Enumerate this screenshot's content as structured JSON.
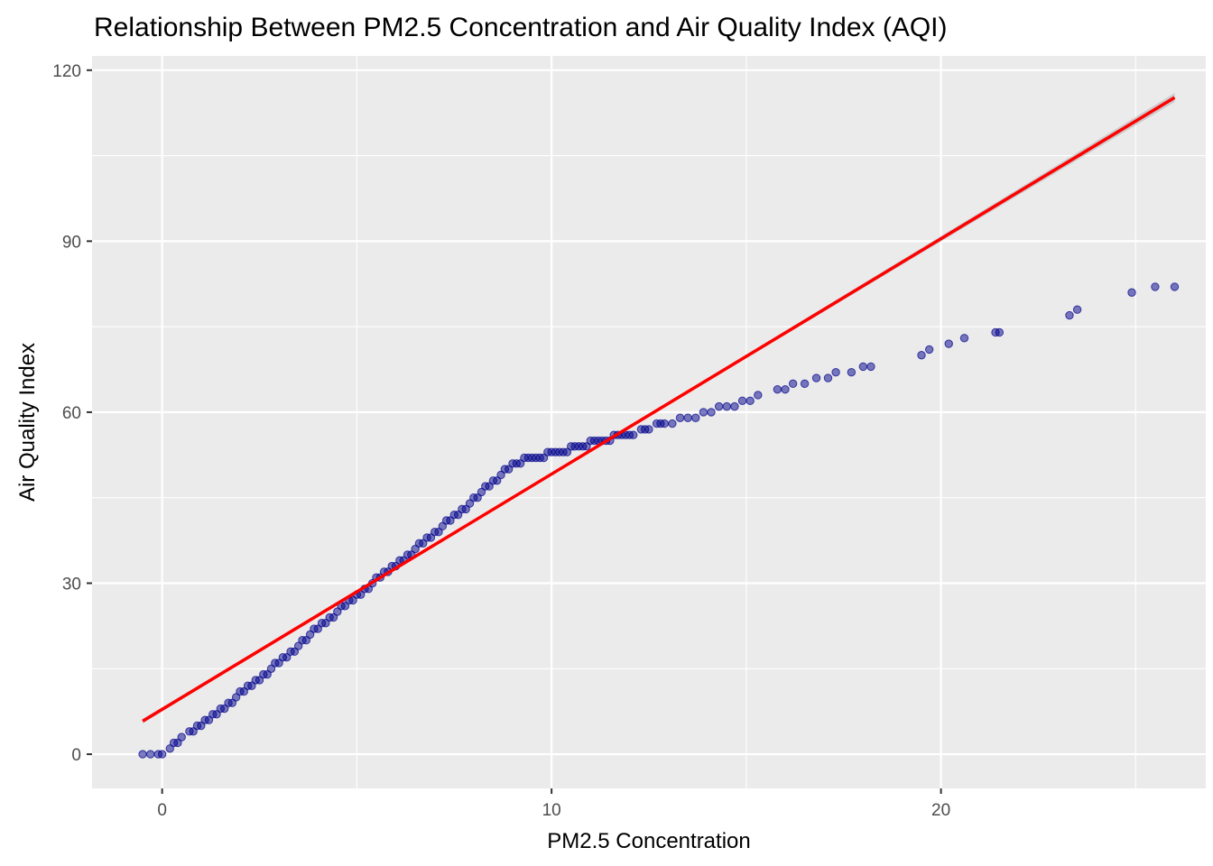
{
  "chart_data": {
    "type": "scatter",
    "title": "Relationship Between PM2.5 Concentration and Air Quality Index (AQI)",
    "xlabel": "PM2.5 Concentration",
    "ylabel": "Air Quality Index",
    "xlim": [
      -1.8,
      26.8
    ],
    "ylim": [
      -6,
      122.5
    ],
    "x_ticks": [
      0,
      10,
      20
    ],
    "y_ticks": [
      0,
      30,
      60,
      90,
      120
    ],
    "grid": true,
    "background": "#ebebeb",
    "series": [
      {
        "kind": "points",
        "color": "#00008b",
        "points": [
          [
            -0.5,
            0
          ],
          [
            -0.3,
            0
          ],
          [
            -0.1,
            0
          ],
          [
            0.0,
            0
          ],
          [
            0.2,
            1
          ],
          [
            0.3,
            2
          ],
          [
            0.4,
            2
          ],
          [
            0.5,
            3
          ],
          [
            0.7,
            4
          ],
          [
            0.8,
            4
          ],
          [
            0.9,
            5
          ],
          [
            1.0,
            5
          ],
          [
            1.1,
            6
          ],
          [
            1.2,
            6
          ],
          [
            1.3,
            7
          ],
          [
            1.4,
            7
          ],
          [
            1.5,
            8
          ],
          [
            1.6,
            8
          ],
          [
            1.7,
            9
          ],
          [
            1.8,
            9
          ],
          [
            1.9,
            10
          ],
          [
            2.0,
            11
          ],
          [
            2.1,
            11
          ],
          [
            2.2,
            12
          ],
          [
            2.3,
            12
          ],
          [
            2.4,
            13
          ],
          [
            2.5,
            13
          ],
          [
            2.6,
            14
          ],
          [
            2.7,
            14
          ],
          [
            2.8,
            15
          ],
          [
            2.9,
            16
          ],
          [
            3.0,
            16
          ],
          [
            3.1,
            17
          ],
          [
            3.2,
            17
          ],
          [
            3.3,
            18
          ],
          [
            3.4,
            18
          ],
          [
            3.5,
            19
          ],
          [
            3.6,
            20
          ],
          [
            3.7,
            20
          ],
          [
            3.8,
            21
          ],
          [
            3.9,
            22
          ],
          [
            4.0,
            22
          ],
          [
            4.1,
            23
          ],
          [
            4.2,
            23
          ],
          [
            4.3,
            24
          ],
          [
            4.4,
            24
          ],
          [
            4.5,
            25
          ],
          [
            4.6,
            26
          ],
          [
            4.7,
            26
          ],
          [
            4.8,
            27
          ],
          [
            4.9,
            27
          ],
          [
            5.0,
            28
          ],
          [
            5.1,
            28
          ],
          [
            5.2,
            29
          ],
          [
            5.3,
            29
          ],
          [
            5.4,
            30
          ],
          [
            5.5,
            31
          ],
          [
            5.6,
            31
          ],
          [
            5.7,
            32
          ],
          [
            5.8,
            32
          ],
          [
            5.9,
            33
          ],
          [
            6.0,
            33
          ],
          [
            6.1,
            34
          ],
          [
            6.2,
            34
          ],
          [
            6.3,
            35
          ],
          [
            6.4,
            35
          ],
          [
            6.5,
            36
          ],
          [
            6.6,
            37
          ],
          [
            6.7,
            37
          ],
          [
            6.8,
            38
          ],
          [
            6.9,
            38
          ],
          [
            7.0,
            39
          ],
          [
            7.1,
            39
          ],
          [
            7.2,
            40
          ],
          [
            7.3,
            41
          ],
          [
            7.4,
            41
          ],
          [
            7.5,
            42
          ],
          [
            7.6,
            42
          ],
          [
            7.7,
            43
          ],
          [
            7.8,
            43
          ],
          [
            7.9,
            44
          ],
          [
            8.0,
            45
          ],
          [
            8.1,
            45
          ],
          [
            8.2,
            46
          ],
          [
            8.3,
            47
          ],
          [
            8.4,
            47
          ],
          [
            8.5,
            48
          ],
          [
            8.6,
            48
          ],
          [
            8.7,
            49
          ],
          [
            8.8,
            50
          ],
          [
            8.9,
            50
          ],
          [
            9.0,
            51
          ],
          [
            9.1,
            51
          ],
          [
            9.2,
            51
          ],
          [
            9.3,
            52
          ],
          [
            9.4,
            52
          ],
          [
            9.5,
            52
          ],
          [
            9.6,
            52
          ],
          [
            9.7,
            52
          ],
          [
            9.8,
            52
          ],
          [
            9.9,
            53
          ],
          [
            10.0,
            53
          ],
          [
            10.1,
            53
          ],
          [
            10.2,
            53
          ],
          [
            10.3,
            53
          ],
          [
            10.4,
            53
          ],
          [
            10.5,
            54
          ],
          [
            10.6,
            54
          ],
          [
            10.7,
            54
          ],
          [
            10.8,
            54
          ],
          [
            10.9,
            54
          ],
          [
            11.0,
            55
          ],
          [
            11.1,
            55
          ],
          [
            11.2,
            55
          ],
          [
            11.3,
            55
          ],
          [
            11.4,
            55
          ],
          [
            11.5,
            55
          ],
          [
            11.6,
            56
          ],
          [
            11.7,
            56
          ],
          [
            11.8,
            56
          ],
          [
            11.9,
            56
          ],
          [
            12.0,
            56
          ],
          [
            12.1,
            56
          ],
          [
            12.3,
            57
          ],
          [
            12.4,
            57
          ],
          [
            12.5,
            57
          ],
          [
            12.7,
            58
          ],
          [
            12.8,
            58
          ],
          [
            12.9,
            58
          ],
          [
            13.1,
            58
          ],
          [
            13.3,
            59
          ],
          [
            13.5,
            59
          ],
          [
            13.7,
            59
          ],
          [
            13.9,
            60
          ],
          [
            14.1,
            60
          ],
          [
            14.3,
            61
          ],
          [
            14.5,
            61
          ],
          [
            14.7,
            61
          ],
          [
            14.9,
            62
          ],
          [
            15.1,
            62
          ],
          [
            15.3,
            63
          ],
          [
            15.8,
            64
          ],
          [
            16.0,
            64
          ],
          [
            16.2,
            65
          ],
          [
            16.5,
            65
          ],
          [
            16.8,
            66
          ],
          [
            17.1,
            66
          ],
          [
            17.3,
            67
          ],
          [
            17.7,
            67
          ],
          [
            18.0,
            68
          ],
          [
            18.2,
            68
          ],
          [
            19.5,
            70
          ],
          [
            19.7,
            71
          ],
          [
            20.2,
            72
          ],
          [
            20.6,
            73
          ],
          [
            21.4,
            74
          ],
          [
            21.5,
            74
          ],
          [
            23.3,
            77
          ],
          [
            23.5,
            78
          ],
          [
            24.9,
            81
          ],
          [
            25.5,
            82
          ],
          [
            26.0,
            82
          ]
        ]
      },
      {
        "kind": "fit-line",
        "color": "#ff0000",
        "band_color": "#bebebe",
        "x_range": [
          -0.5,
          26.0
        ],
        "y_range": [
          5.8,
          115.2
        ]
      }
    ]
  }
}
